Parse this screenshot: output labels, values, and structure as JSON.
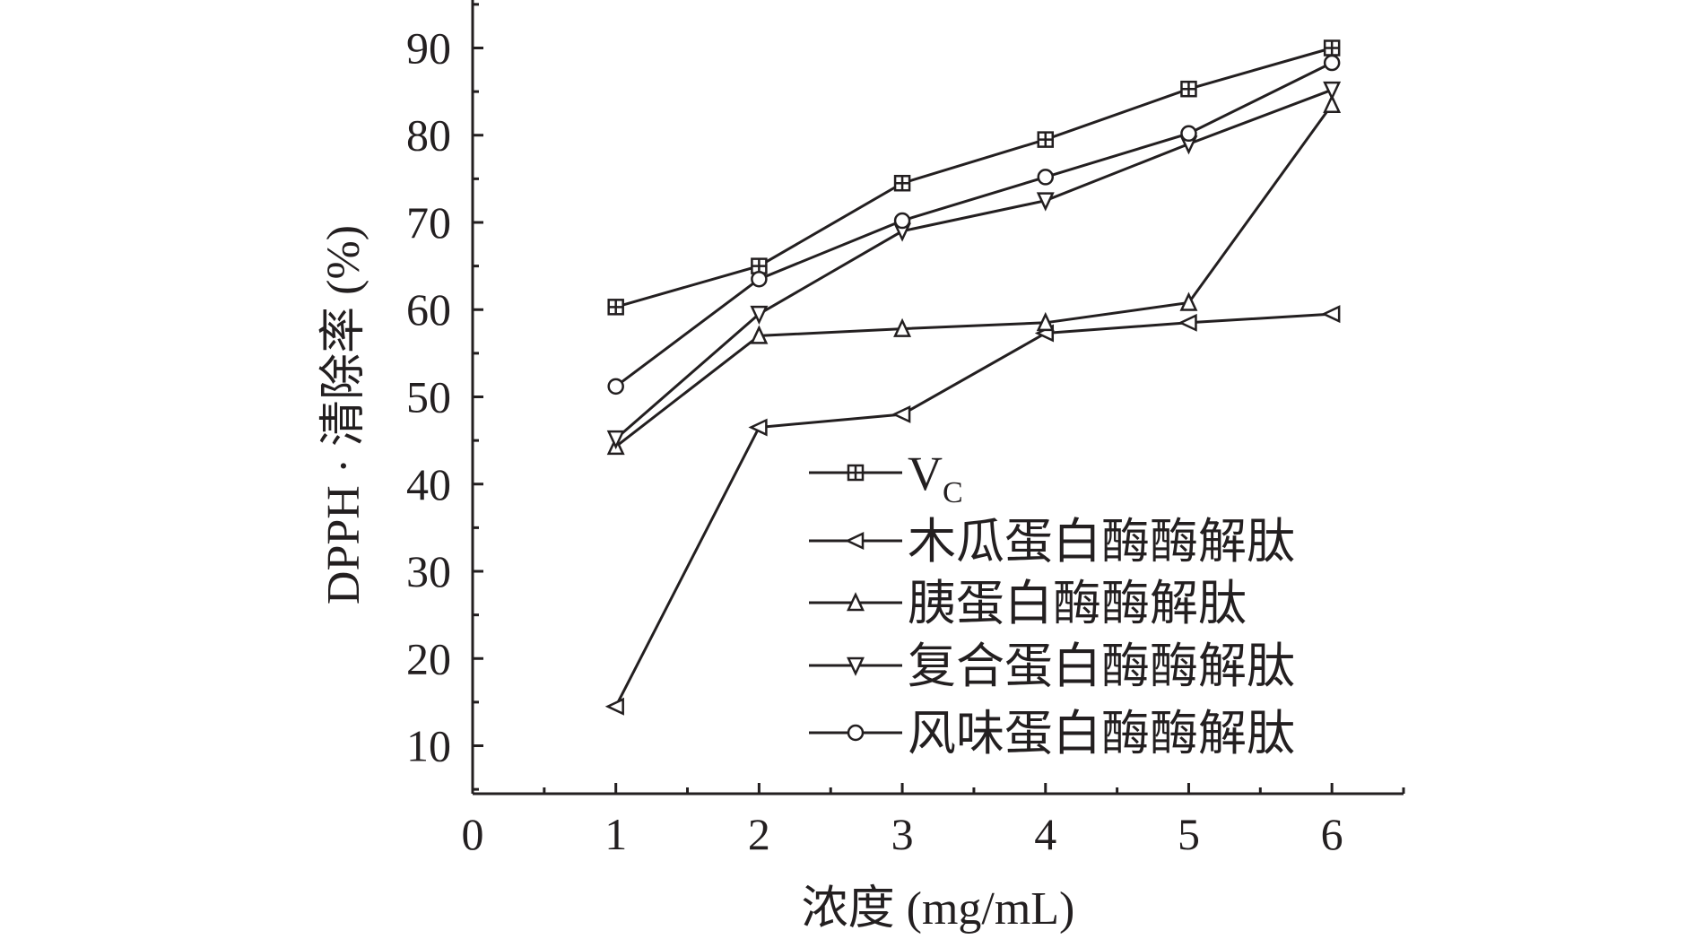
{
  "chart_data": {
    "type": "line",
    "xlabel": "浓度 (mg/mL)",
    "ylabel": "DPPH · 清除率 (%)",
    "xlim": [
      0,
      6.5
    ],
    "ylim": [
      4.5,
      95.5
    ],
    "x_ticks": [
      0,
      1,
      2,
      3,
      4,
      5,
      6
    ],
    "y_ticks": [
      10,
      20,
      30,
      40,
      50,
      60,
      70,
      80,
      90
    ],
    "grid": false,
    "legend_position": "bottom-right",
    "x": [
      1,
      2,
      3,
      4,
      5,
      6
    ],
    "series": [
      {
        "name": "V",
        "subscript": "C",
        "marker": "square-cross",
        "values": [
          60.3,
          65.0,
          74.5,
          79.5,
          85.3,
          90.0
        ]
      },
      {
        "name": "木瓜蛋白酶酶解肽",
        "marker": "triangle-left",
        "values": [
          14.5,
          46.5,
          48.0,
          57.3,
          58.5,
          59.5
        ]
      },
      {
        "name": "胰蛋白酶酶解肽",
        "marker": "triangle-up",
        "values": [
          44.3,
          57.0,
          57.8,
          58.5,
          60.8,
          83.5
        ]
      },
      {
        "name": "复合蛋白酶酶解肽",
        "marker": "triangle-down",
        "values": [
          45.2,
          59.5,
          69.0,
          72.5,
          79.0,
          85.2
        ]
      },
      {
        "name": "风味蛋白酶酶解肽",
        "marker": "circle",
        "values": [
          51.2,
          63.5,
          70.2,
          75.2,
          80.2,
          88.3
        ]
      }
    ]
  }
}
